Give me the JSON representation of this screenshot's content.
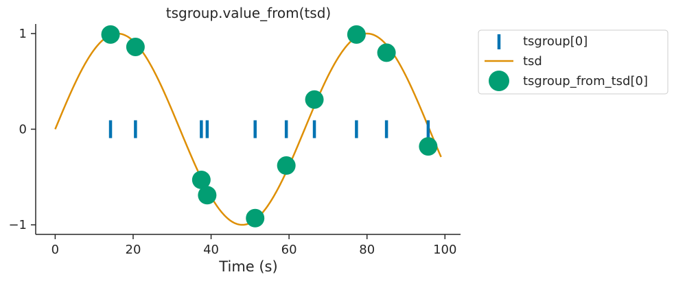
{
  "chart_data": {
    "type": "scatter",
    "title": "tsgroup.value_from(tsd)",
    "xlabel": "Time (s)",
    "ylabel": "",
    "xlim": [
      -5,
      104
    ],
    "ylim": [
      -1.1,
      1.1
    ],
    "xticks": [
      0,
      20,
      40,
      60,
      80,
      100
    ],
    "xtick_labels": [
      "0",
      "20",
      "40",
      "60",
      "80",
      "100"
    ],
    "yticks": [
      -1,
      0,
      1
    ],
    "ytick_labels": [
      "−1",
      "0",
      "1"
    ],
    "grid": false,
    "legend_position": "outside-right-top",
    "series": [
      {
        "name": "tsgroup[0]",
        "kind": "event-ticks",
        "color": "#0173b2",
        "x": [
          14.2,
          20.6,
          37.5,
          39.0,
          51.3,
          59.3,
          66.5,
          77.3,
          85.0,
          95.7
        ],
        "y": [
          0,
          0,
          0,
          0,
          0,
          0,
          0,
          0,
          0,
          0
        ]
      },
      {
        "name": "tsd",
        "kind": "line",
        "color": "#de8f05",
        "function": "sine",
        "period": 64,
        "x_start": 0,
        "x_end": 99
      },
      {
        "name": "tsgroup_from_tsd[0]",
        "kind": "markers",
        "color": "#029e73",
        "x": [
          14.2,
          20.6,
          37.5,
          39.0,
          51.3,
          59.3,
          66.5,
          77.3,
          85.0,
          95.7
        ],
        "y": [
          0.99,
          0.86,
          -0.53,
          -0.69,
          -0.93,
          -0.38,
          0.31,
          0.99,
          0.8,
          -0.18
        ]
      }
    ]
  }
}
